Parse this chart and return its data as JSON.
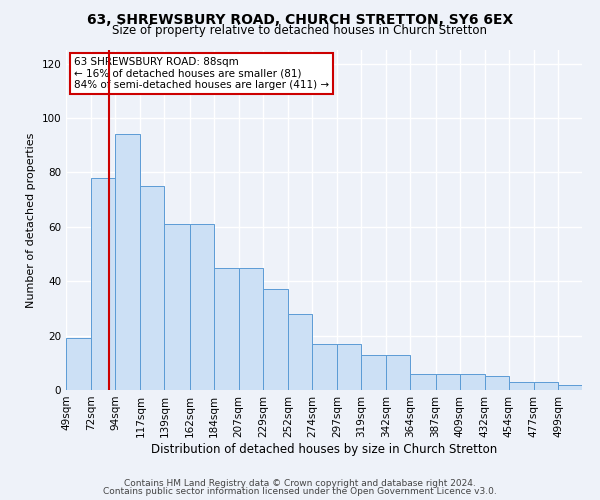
{
  "title": "63, SHREWSBURY ROAD, CHURCH STRETTON, SY6 6EX",
  "subtitle": "Size of property relative to detached houses in Church Stretton",
  "xlabel": "Distribution of detached houses by size in Church Stretton",
  "ylabel": "Number of detached properties",
  "bar_labels": [
    "49sqm",
    "72sqm",
    "94sqm",
    "117sqm",
    "139sqm",
    "162sqm",
    "184sqm",
    "207sqm",
    "229sqm",
    "252sqm",
    "274sqm",
    "297sqm",
    "319sqm",
    "342sqm",
    "364sqm",
    "387sqm",
    "409sqm",
    "432sqm",
    "454sqm",
    "477sqm",
    "499sqm"
  ],
  "bar_values": [
    19,
    78,
    94,
    75,
    61,
    61,
    45,
    45,
    37,
    28,
    17,
    17,
    13,
    13,
    6,
    6,
    6,
    5,
    3,
    3,
    2
  ],
  "bin_edges": [
    49,
    72,
    94,
    117,
    139,
    162,
    184,
    207,
    229,
    252,
    274,
    297,
    319,
    342,
    364,
    387,
    409,
    432,
    454,
    477,
    499,
    521
  ],
  "bar_color": "#cce0f5",
  "bar_edge_color": "#5b9bd5",
  "ylim": [
    0,
    125
  ],
  "yticks": [
    0,
    20,
    40,
    60,
    80,
    100,
    120
  ],
  "annotation_line1": "63 SHREWSBURY ROAD: 88sqm",
  "annotation_line2": "← 16% of detached houses are smaller (81)",
  "annotation_line3": "84% of semi-detached houses are larger (411) →",
  "vline_x": 88,
  "vline_color": "#cc0000",
  "annotation_box_edge": "#cc0000",
  "footer1": "Contains HM Land Registry data © Crown copyright and database right 2024.",
  "footer2": "Contains public sector information licensed under the Open Government Licence v3.0.",
  "background_color": "#eef2f9",
  "grid_color": "#ffffff",
  "title_fontsize": 10,
  "subtitle_fontsize": 8.5,
  "xlabel_fontsize": 8.5,
  "ylabel_fontsize": 8,
  "tick_fontsize": 7.5,
  "footer_fontsize": 6.5
}
